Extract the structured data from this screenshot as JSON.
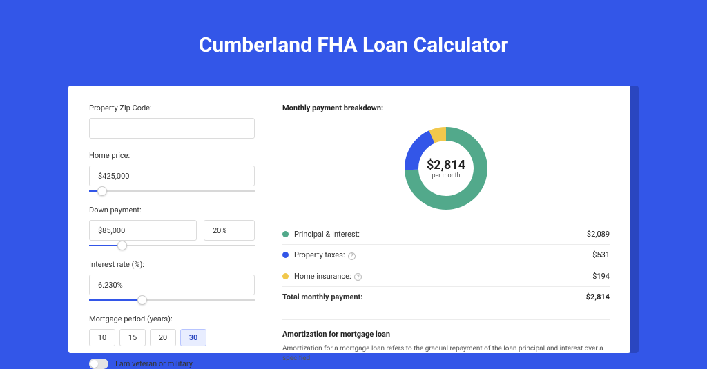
{
  "page": {
    "title": "Cumberland FHA Loan Calculator",
    "bg_color": "#3356e8",
    "shadow_color": "#2a46c0",
    "card_bg": "#ffffff"
  },
  "form": {
    "zip": {
      "label": "Property Zip Code:",
      "value": ""
    },
    "home_price": {
      "label": "Home price:",
      "value": "$425,000",
      "slider_pct": 8
    },
    "down_payment": {
      "label": "Down payment:",
      "amount": "$85,000",
      "percent": "20%",
      "slider_pct": 20
    },
    "interest_rate": {
      "label": "Interest rate (%):",
      "value": "6.230%",
      "slider_pct": 32
    },
    "period": {
      "label": "Mortgage period (years):",
      "options": [
        "10",
        "15",
        "20",
        "30"
      ],
      "selected": "30"
    },
    "veteran": {
      "label": "I am veteran or military",
      "checked": false
    }
  },
  "breakdown": {
    "title": "Monthly payment breakdown:",
    "center_amount": "$2,814",
    "center_sub": "per month",
    "donut": {
      "segments": [
        {
          "name": "principal_interest",
          "pct": 74.2,
          "color": "#52a98b"
        },
        {
          "name": "property_taxes",
          "pct": 18.9,
          "color": "#3356e8"
        },
        {
          "name": "home_insurance",
          "pct": 6.9,
          "color": "#f1c84c"
        }
      ],
      "radius": 50,
      "stroke_width": 20
    },
    "legend": [
      {
        "label": "Principal & Interest:",
        "value": "$2,089",
        "color": "#52a98b",
        "info": false
      },
      {
        "label": "Property taxes:",
        "value": "$531",
        "color": "#3356e8",
        "info": true
      },
      {
        "label": "Home insurance:",
        "value": "$194",
        "color": "#f1c84c",
        "info": true
      }
    ],
    "total": {
      "label": "Total monthly payment:",
      "value": "$2,814"
    }
  },
  "amortization": {
    "title": "Amortization for mortgage loan",
    "text": "Amortization for a mortgage loan refers to the gradual repayment of the loan principal and interest over a specified"
  }
}
